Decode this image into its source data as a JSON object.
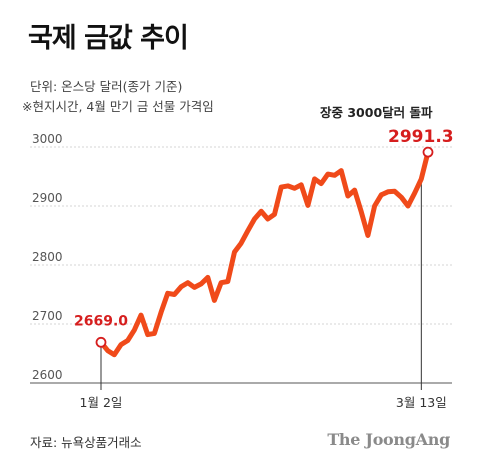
{
  "header": {
    "title": "국제 금값 추이",
    "unit_note": "단위: 온스당 달러(종가 기준)",
    "time_note": "※현지시간, 4월 만기 금 선물 가격임"
  },
  "footer": {
    "source": "자료: 뉴욕상품거래소",
    "logo": "The JoongAng"
  },
  "chart_data": {
    "type": "line",
    "title": "국제 금값 추이",
    "xlabel": "",
    "ylabel": "",
    "ylim": [
      2600,
      3000
    ],
    "yticks": [
      2600,
      2700,
      2800,
      2900,
      3000
    ],
    "x_tick_labels": [
      {
        "label": "1월 2일",
        "index": 0
      },
      {
        "label": "3월 13일",
        "index": 48
      }
    ],
    "grid": true,
    "line_color": "#f04a1a",
    "accent_color": "#d61e1e",
    "series": [
      {
        "values": [
          2669.0,
          2655,
          2648,
          2665,
          2672,
          2690,
          2715,
          2682,
          2684,
          2720,
          2752,
          2750,
          2763,
          2770,
          2762,
          2768,
          2779,
          2740,
          2770,
          2772,
          2822,
          2837,
          2858,
          2878,
          2891,
          2878,
          2886,
          2932,
          2934,
          2930,
          2936,
          2901,
          2946,
          2938,
          2954,
          2952,
          2960,
          2917,
          2927,
          2890,
          2850,
          2900,
          2919,
          2924,
          2925,
          2915,
          2900,
          2922,
          2946,
          2991.3
        ]
      }
    ],
    "annotations": {
      "start_value": "2669.0",
      "end_value": "2991.3",
      "end_label": "장중 3000달러 돌파"
    }
  }
}
